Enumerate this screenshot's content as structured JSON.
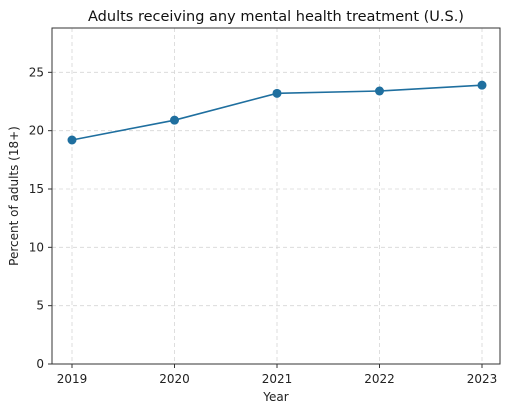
{
  "chart_data": {
    "type": "line",
    "title": "Adults receiving any mental health treatment (U.S.)",
    "xlabel": "Year",
    "ylabel": "Percent of adults (18+)",
    "x": [
      "2019",
      "2020",
      "2021",
      "2022",
      "2023"
    ],
    "y_ticks": [
      "0",
      "5",
      "10",
      "15",
      "20",
      "25"
    ],
    "ylim": [
      0,
      28.8
    ],
    "grid": true,
    "series": [
      {
        "values": [
          19.2,
          20.9,
          23.2,
          23.4,
          23.9
        ],
        "color": "#1f6f9f"
      }
    ]
  }
}
